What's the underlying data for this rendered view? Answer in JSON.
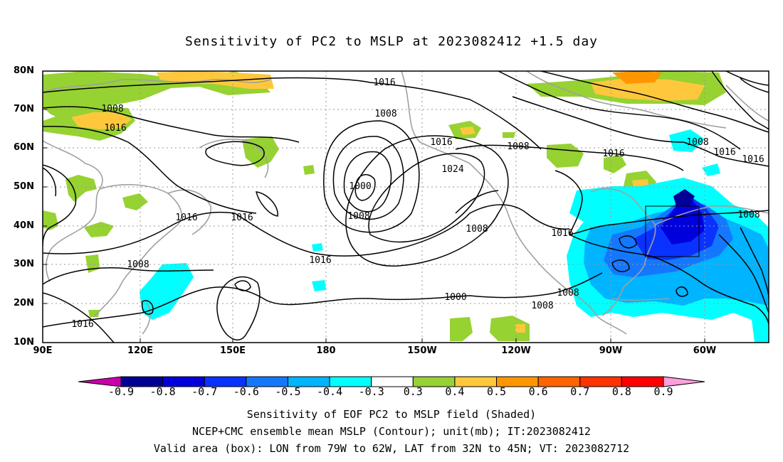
{
  "title": "Sensitivity of PC2 to MSLP at 2023082412 +1.5 day",
  "lat_labels": [
    "80N",
    "70N",
    "60N",
    "50N",
    "40N",
    "30N",
    "20N",
    "10N"
  ],
  "lon_labels": [
    "90E",
    "120E",
    "150E",
    "180",
    "150W",
    "120W",
    "90W",
    "60W"
  ],
  "contour_labels": [
    "1016",
    "1008",
    "1016",
    "1008",
    "1016",
    "1008",
    "1024",
    "1000",
    "1008",
    "1016",
    "1016",
    "1016",
    "1008",
    "1016",
    "1008",
    "1008",
    "1008",
    "1016",
    "1016",
    "1000",
    "1008",
    "1016",
    "1016",
    "1008"
  ],
  "colorbar": {
    "labels": [
      "-0.9",
      "-0.8",
      "-0.7",
      "-0.6",
      "-0.5",
      "-0.4",
      "-0.3",
      "0.3",
      "0.4",
      "0.5",
      "0.6",
      "0.7",
      "0.8",
      "0.9"
    ],
    "colors": [
      "#000096",
      "#0000dc",
      "#0a32ff",
      "#1478ff",
      "#00b4ff",
      "#00ffff",
      "#ffffff",
      "#96d232",
      "#ffc83c",
      "#ff9600",
      "#ff6400",
      "#ff3200",
      "#ff0000"
    ],
    "low_end_color": "#c800aa",
    "high_end_color": "#ffa0dc"
  },
  "captions": [
    "Sensitivity of EOF PC2 to MSLP field (Shaded)",
    "NCEP+CMC ensemble mean MSLP (Contour); unit(mb); IT:2023082412",
    "Valid area (box): LON from 79W to 62W, LAT from 32N to 45N; VT: 2023082712"
  ]
}
